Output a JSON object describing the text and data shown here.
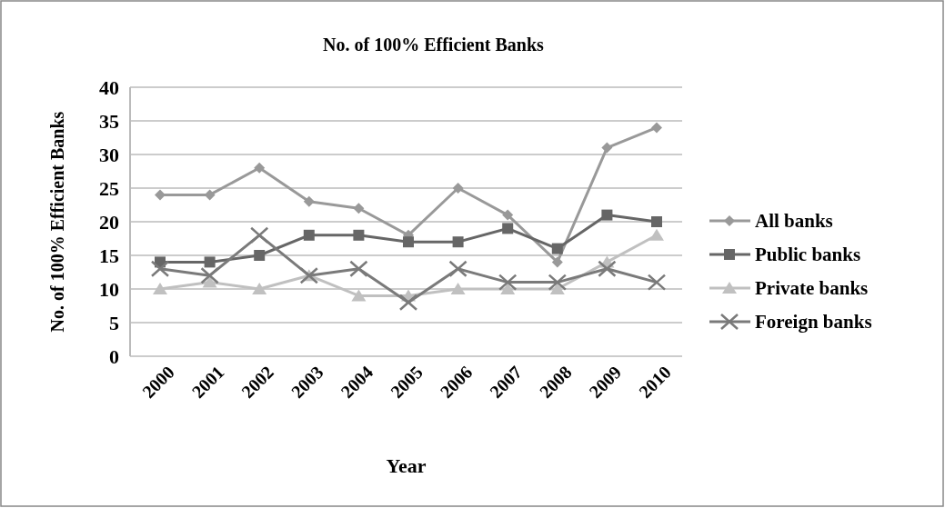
{
  "chart_data": {
    "type": "line",
    "title": "No. of 100% Efficient Banks",
    "xlabel": "Year",
    "ylabel": "No. of  100% Efficient Banks",
    "categories": [
      "2000",
      "2001",
      "2002",
      "2003",
      "2004",
      "2005",
      "2006",
      "2007",
      "2008",
      "2009",
      "2010"
    ],
    "series": [
      {
        "name": "All banks",
        "color": "#999999",
        "marker": "diamond",
        "values": [
          24,
          24,
          28,
          23,
          22,
          18,
          25,
          21,
          14,
          31,
          34
        ]
      },
      {
        "name": "Public banks",
        "color": "#666666",
        "marker": "square",
        "values": [
          14,
          14,
          15,
          18,
          18,
          17,
          17,
          19,
          16,
          21,
          20
        ]
      },
      {
        "name": "Private banks",
        "color": "#c0c0c0",
        "marker": "triangle",
        "values": [
          10,
          11,
          10,
          12,
          9,
          9,
          10,
          10,
          10,
          14,
          18
        ]
      },
      {
        "name": "Foreign banks",
        "color": "#7a7a7a",
        "marker": "cross",
        "values": [
          13,
          12,
          18,
          12,
          13,
          8,
          13,
          11,
          11,
          13,
          11
        ]
      }
    ],
    "ylim": [
      0,
      40
    ],
    "yticks": [
      0,
      5,
      10,
      15,
      20,
      25,
      30,
      35,
      40
    ],
    "grid": "y",
    "legend": "right"
  }
}
